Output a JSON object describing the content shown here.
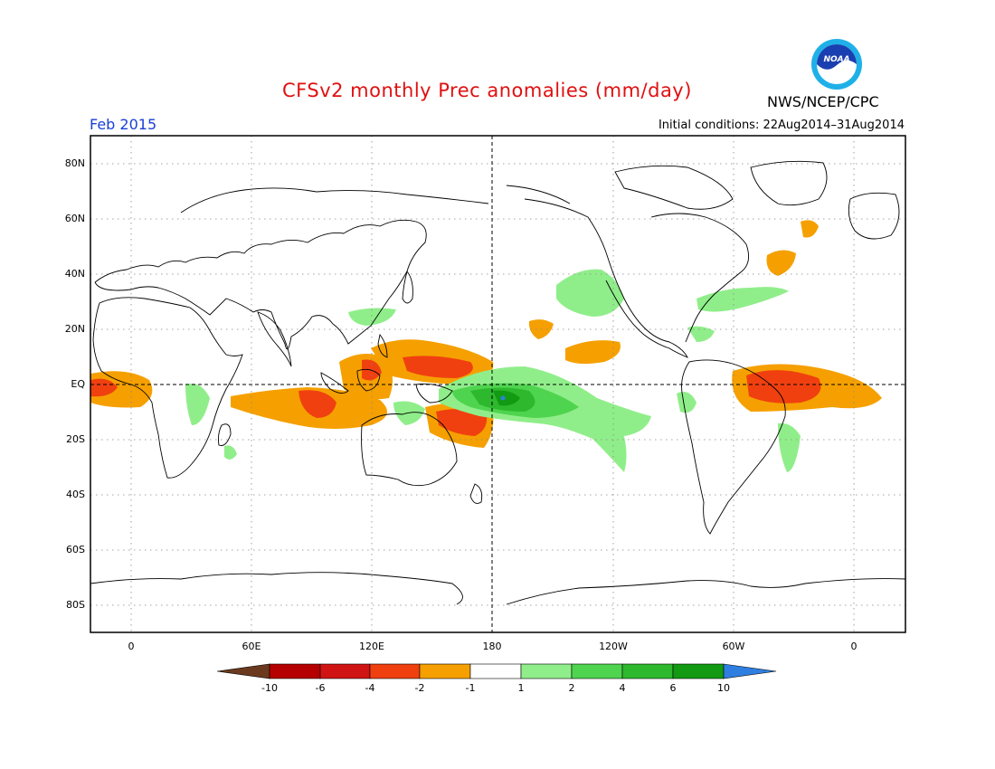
{
  "header": {
    "title": "CFSv2 monthly Prec anomalies (mm/day)",
    "credit": "NWS/NCEP/CPC",
    "month": "Feb 2015",
    "initial_conditions": "Initial conditions: 22Aug2014–31Aug2014",
    "logo_text": "NOAA"
  },
  "colors": {
    "title": "#e01010",
    "month": "#1a3fd6",
    "coast": "#000000"
  },
  "map": {
    "lat_labels": [
      "80N",
      "60N",
      "40N",
      "20N",
      "EQ",
      "20S",
      "40S",
      "60S",
      "80S"
    ],
    "lon_labels": [
      "0",
      "60E",
      "120E",
      "180",
      "120W",
      "60W",
      "0"
    ]
  },
  "colorbar": {
    "labels": [
      "-10",
      "-6",
      "-4",
      "-2",
      "-1",
      "1",
      "2",
      "4",
      "6",
      "10"
    ],
    "colors": [
      "#6b3a1e",
      "#b40000",
      "#d01414",
      "#f04010",
      "#f5a000",
      "#ffffff",
      "#90ee8a",
      "#4fd44f",
      "#2eb82e",
      "#129a12",
      "#2e7fe0"
    ]
  }
}
